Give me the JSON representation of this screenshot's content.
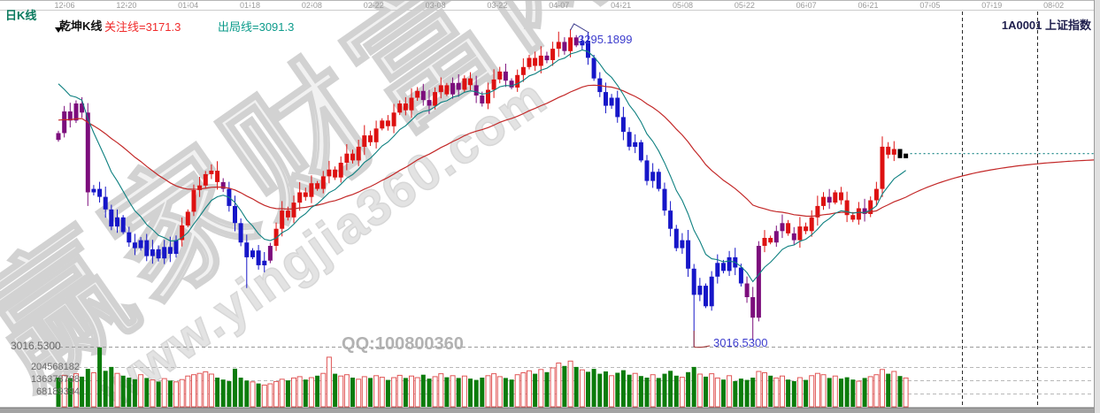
{
  "header": {
    "period_label": "日K线",
    "tab_label": "乾坤K线",
    "watch_line_label": "关注线=3171.3",
    "exit_line_label": "出局线=3091.3",
    "symbol_text": "1A0001 上证指数"
  },
  "axis": {
    "dates": [
      "12-06",
      "12-20",
      "01-04",
      "01-18",
      "02-08",
      "02-22",
      "03-08",
      "03-22",
      "04-07",
      "04-21",
      "05-08",
      "05-22",
      "06-07",
      "06-21",
      "07-05",
      "07-19",
      "08-02"
    ]
  },
  "scale": {
    "price_min_label": "3016.5300",
    "volume_labels": [
      "204568182",
      "136378788",
      "68189394"
    ]
  },
  "annotations": {
    "peak_label": "3295.1899",
    "trough_label": "3016.5300"
  },
  "watermark": {
    "brand": "赢家财富网",
    "url": "www.yingjia360.com",
    "qq": "QQ:100800360"
  },
  "colors": {
    "trend": {
      "r": "#dd1111",
      "b": "#1616c8",
      "p": "#7c0d7c"
    },
    "vol_up_outline": "#e05555",
    "vol_down_fill": "#0c7c0c",
    "ma_short": "#0e8080",
    "ma_long": "#c32828",
    "watch_text": "#f02b2b",
    "exit_text": "#0c9b8b",
    "annotation_text": "#3c3ccd"
  },
  "chart_data": {
    "type": "candlestick",
    "title": "1A0001 上证指数 日K线 (乾坤K线)",
    "legend": [
      "关注线=3171.3",
      "出局线=3091.3"
    ],
    "price_axis": {
      "min": 3016.53,
      "max": 3295.19
    },
    "volume_axis": {
      "grid_step": 68189394,
      "gridlines": [
        204568182,
        136378788,
        68189394
      ]
    },
    "watch_line_value": 3171.3,
    "exit_line_value": 3091.3,
    "open_rule": "previous_close",
    "first_open": 3198,
    "closes": [
      3204,
      3223,
      3215,
      3230,
      3222,
      3152,
      3155,
      3148,
      3137,
      3122,
      3130,
      3117,
      3108,
      3103,
      3110,
      3096,
      3102,
      3094,
      3104,
      3098,
      3110,
      3123,
      3135,
      3154,
      3158,
      3168,
      3171,
      3161,
      3155,
      3140,
      3125,
      3108,
      3095,
      3101,
      3088,
      3092,
      3105,
      3120,
      3136,
      3130,
      3143,
      3152,
      3148,
      3160,
      3155,
      3166,
      3172,
      3165,
      3178,
      3186,
      3180,
      3192,
      3202,
      3196,
      3208,
      3215,
      3210,
      3222,
      3230,
      3224,
      3235,
      3241,
      3233,
      3228,
      3240,
      3246,
      3238,
      3248,
      3242,
      3252,
      3246,
      3237,
      3230,
      3242,
      3251,
      3258,
      3250,
      3244,
      3255,
      3262,
      3270,
      3263,
      3272,
      3268,
      3278,
      3284,
      3276,
      3288,
      3281,
      3285,
      3270,
      3252,
      3240,
      3228,
      3235,
      3218,
      3205,
      3192,
      3196,
      3180,
      3162,
      3170,
      3155,
      3136,
      3120,
      3103,
      3110,
      3085,
      3062,
      3070,
      3052,
      3078,
      3090,
      3083,
      3095,
      3086,
      3072,
      3060,
      3042,
      3105,
      3112,
      3108,
      3118,
      3125,
      3116,
      3110,
      3122,
      3118,
      3130,
      3140,
      3148,
      3143,
      3152,
      3145,
      3132,
      3128,
      3138,
      3133,
      3145,
      3155,
      3192,
      3185,
      3190,
      3182,
      3186
    ],
    "trend_colors": "ppppppbbbbbbbbbbbbbbbrrrrrrrpbbbbbbbprrrrrrrrrrrrrrrrrrrrrrrrrpprrrpprrpprrrpprrrrrprrprpbbbbbbbbbbbbbbbbbbbbbbbbbbbbppprrpprprrrrrprrrrrprrrrr",
    "volumes_millions": [
      150,
      162,
      148,
      170,
      155,
      195,
      175,
      305,
      185,
      205,
      172,
      160,
      150,
      142,
      165,
      148,
      138,
      130,
      145,
      135,
      128,
      140,
      158,
      165,
      172,
      180,
      168,
      150,
      140,
      132,
      196,
      150,
      135,
      128,
      120,
      112,
      118,
      130,
      142,
      136,
      148,
      155,
      140,
      150,
      160,
      172,
      255,
      170,
      158,
      165,
      150,
      142,
      155,
      148,
      160,
      152,
      138,
      150,
      162,
      148,
      158,
      150,
      165,
      145,
      155,
      170,
      152,
      160,
      148,
      158,
      145,
      138,
      150,
      160,
      170,
      155,
      148,
      140,
      165,
      175,
      185,
      170,
      192,
      178,
      200,
      225,
      210,
      235,
      205,
      190,
      180,
      195,
      170,
      182,
      160,
      175,
      188,
      165,
      172,
      158,
      150,
      165,
      148,
      170,
      185,
      160,
      152,
      178,
      205,
      168,
      155,
      170,
      148,
      140,
      160,
      132,
      145,
      138,
      150,
      182,
      175,
      160,
      148,
      158,
      140,
      132,
      150,
      138,
      160,
      172,
      165,
      148,
      158,
      145,
      152,
      140,
      132,
      148,
      155,
      165,
      192,
      170,
      182,
      158,
      148
    ],
    "extremes": {
      "5": {
        "low": 3140
      },
      "32": {
        "low": 3068
      },
      "87": {
        "high": 3295.1899
      },
      "108": {
        "low": 3016.53
      },
      "118": {
        "low": 3022
      }
    },
    "peak_day": 87,
    "trough_day": 108,
    "peak_value": 3295.1899,
    "trough_value": 3016.53,
    "last_price": 3186,
    "ma_short_seed": 3258,
    "ma_short_alpha": 0.2,
    "ma_long_seed": 3216,
    "ma_long_alpha": 0.052,
    "ma_long_target": 3183.5,
    "projection_vlines_x": [
      1087,
      1172
    ],
    "grid": "dashed-horizontal-volume-grid, dashed price-min line",
    "legend_position": "top-left"
  }
}
